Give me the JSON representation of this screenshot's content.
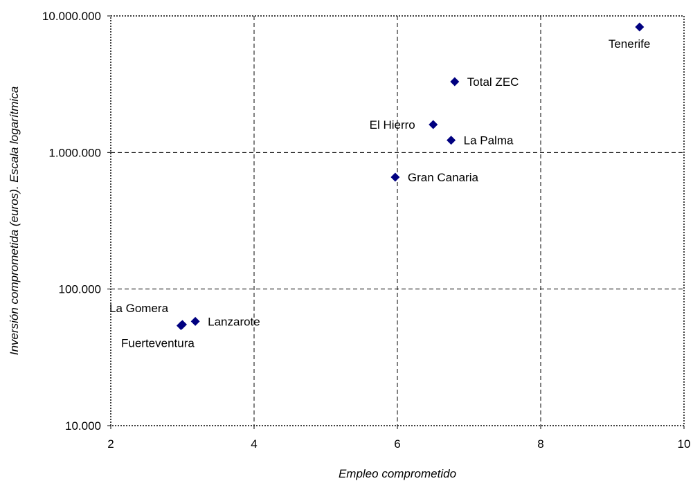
{
  "chart_data": {
    "type": "scatter",
    "title": "",
    "xlabel": "Empleo comprometido",
    "ylabel": "Inversión comprometida (euros). Escala logarítmica",
    "xlim": [
      2,
      10
    ],
    "ylim": [
      10000,
      10000000
    ],
    "yscale": "log",
    "grid": true,
    "xticks": [
      2,
      4,
      6,
      8,
      10
    ],
    "xtick_labels": [
      "2",
      "4",
      "6",
      "8",
      "10"
    ],
    "yticks": [
      10000,
      100000,
      1000000,
      10000000
    ],
    "ytick_labels": [
      "10.000",
      "100.000",
      "1.000.000",
      "10.000.000"
    ],
    "marker_color": "#000080",
    "points": [
      {
        "label": "Tenerife",
        "x": 9.38,
        "y": 8300000,
        "label_pos": "below-left"
      },
      {
        "label": "Total ZEC",
        "x": 6.8,
        "y": 3300000,
        "label_pos": "right"
      },
      {
        "label": "El Hierro",
        "x": 6.5,
        "y": 1600000,
        "label_pos": "left"
      },
      {
        "label": "La Palma",
        "x": 6.75,
        "y": 1230000,
        "label_pos": "right"
      },
      {
        "label": "Gran Canaria",
        "x": 5.97,
        "y": 660000,
        "label_pos": "right"
      },
      {
        "label": "Lanzarote",
        "x": 3.18,
        "y": 58000,
        "label_pos": "right"
      },
      {
        "label": "La Gomera",
        "x": 3.0,
        "y": 55000,
        "label_pos": "above-left"
      },
      {
        "label": "Fuerteventura",
        "x": 2.98,
        "y": 54000,
        "label_pos": "below"
      }
    ]
  }
}
